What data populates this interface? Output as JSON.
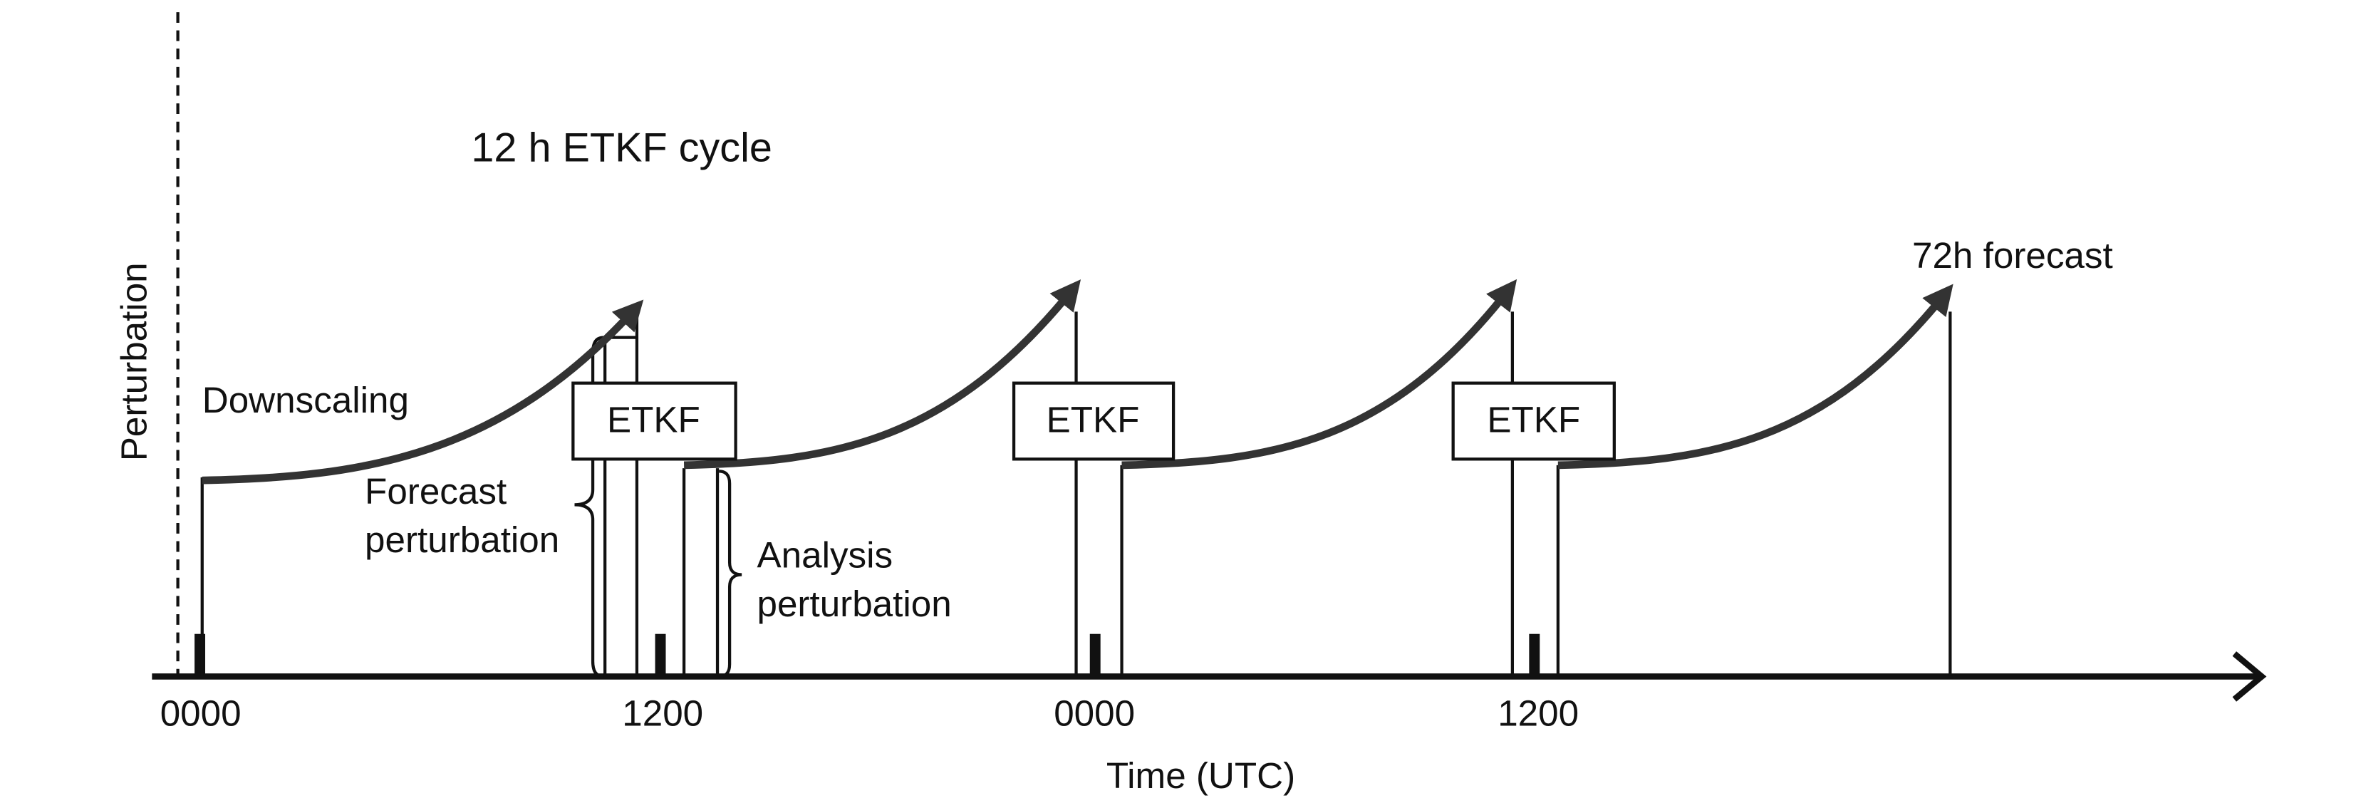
{
  "title": "12 h ETKF cycle",
  "y_axis_label": "Perturbation",
  "x_axis_label": "Time (UTC)",
  "time_labels": [
    "0000",
    "1200",
    "0000",
    "1200"
  ],
  "boxes": [
    {
      "label": "ETKF"
    },
    {
      "label": "ETKF"
    },
    {
      "label": "ETKF"
    }
  ],
  "annotations": {
    "downscaling": "Downscaling",
    "forecast_perturbation": [
      "Forecast",
      "perturbation"
    ],
    "analysis_perturbation": [
      "Analysis",
      "perturbation"
    ],
    "final_forecast": "72h forecast"
  }
}
